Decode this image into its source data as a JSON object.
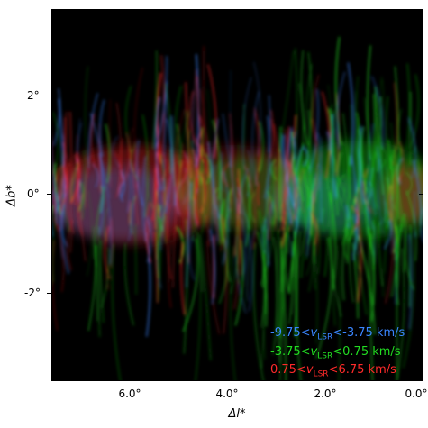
{
  "figure": {
    "x_axis": {
      "label": "Δl*",
      "ticks": [
        "6.0°",
        "4.0°",
        "2.0°",
        "0.0°"
      ]
    },
    "y_axis": {
      "label": "Δb*",
      "ticks": [
        "2°",
        "0°",
        "-2°"
      ]
    },
    "legend": [
      {
        "lo": "-9.75",
        "hi": "-3.75",
        "unit": "km/s",
        "color": "#3a86ff"
      },
      {
        "lo": "-3.75",
        "hi": "0.75",
        "unit": "km/s",
        "color": "#22dd22"
      },
      {
        "lo": "0.75",
        "hi": "6.75",
        "unit": "km/s",
        "color": "#ff2a2a"
      }
    ],
    "legend_symbol": "v",
    "legend_subscript": "LSR",
    "colors": {
      "background": "#000000",
      "blue": "#3a86ff",
      "green": "#22dd22",
      "red": "#ff2a2a"
    }
  }
}
